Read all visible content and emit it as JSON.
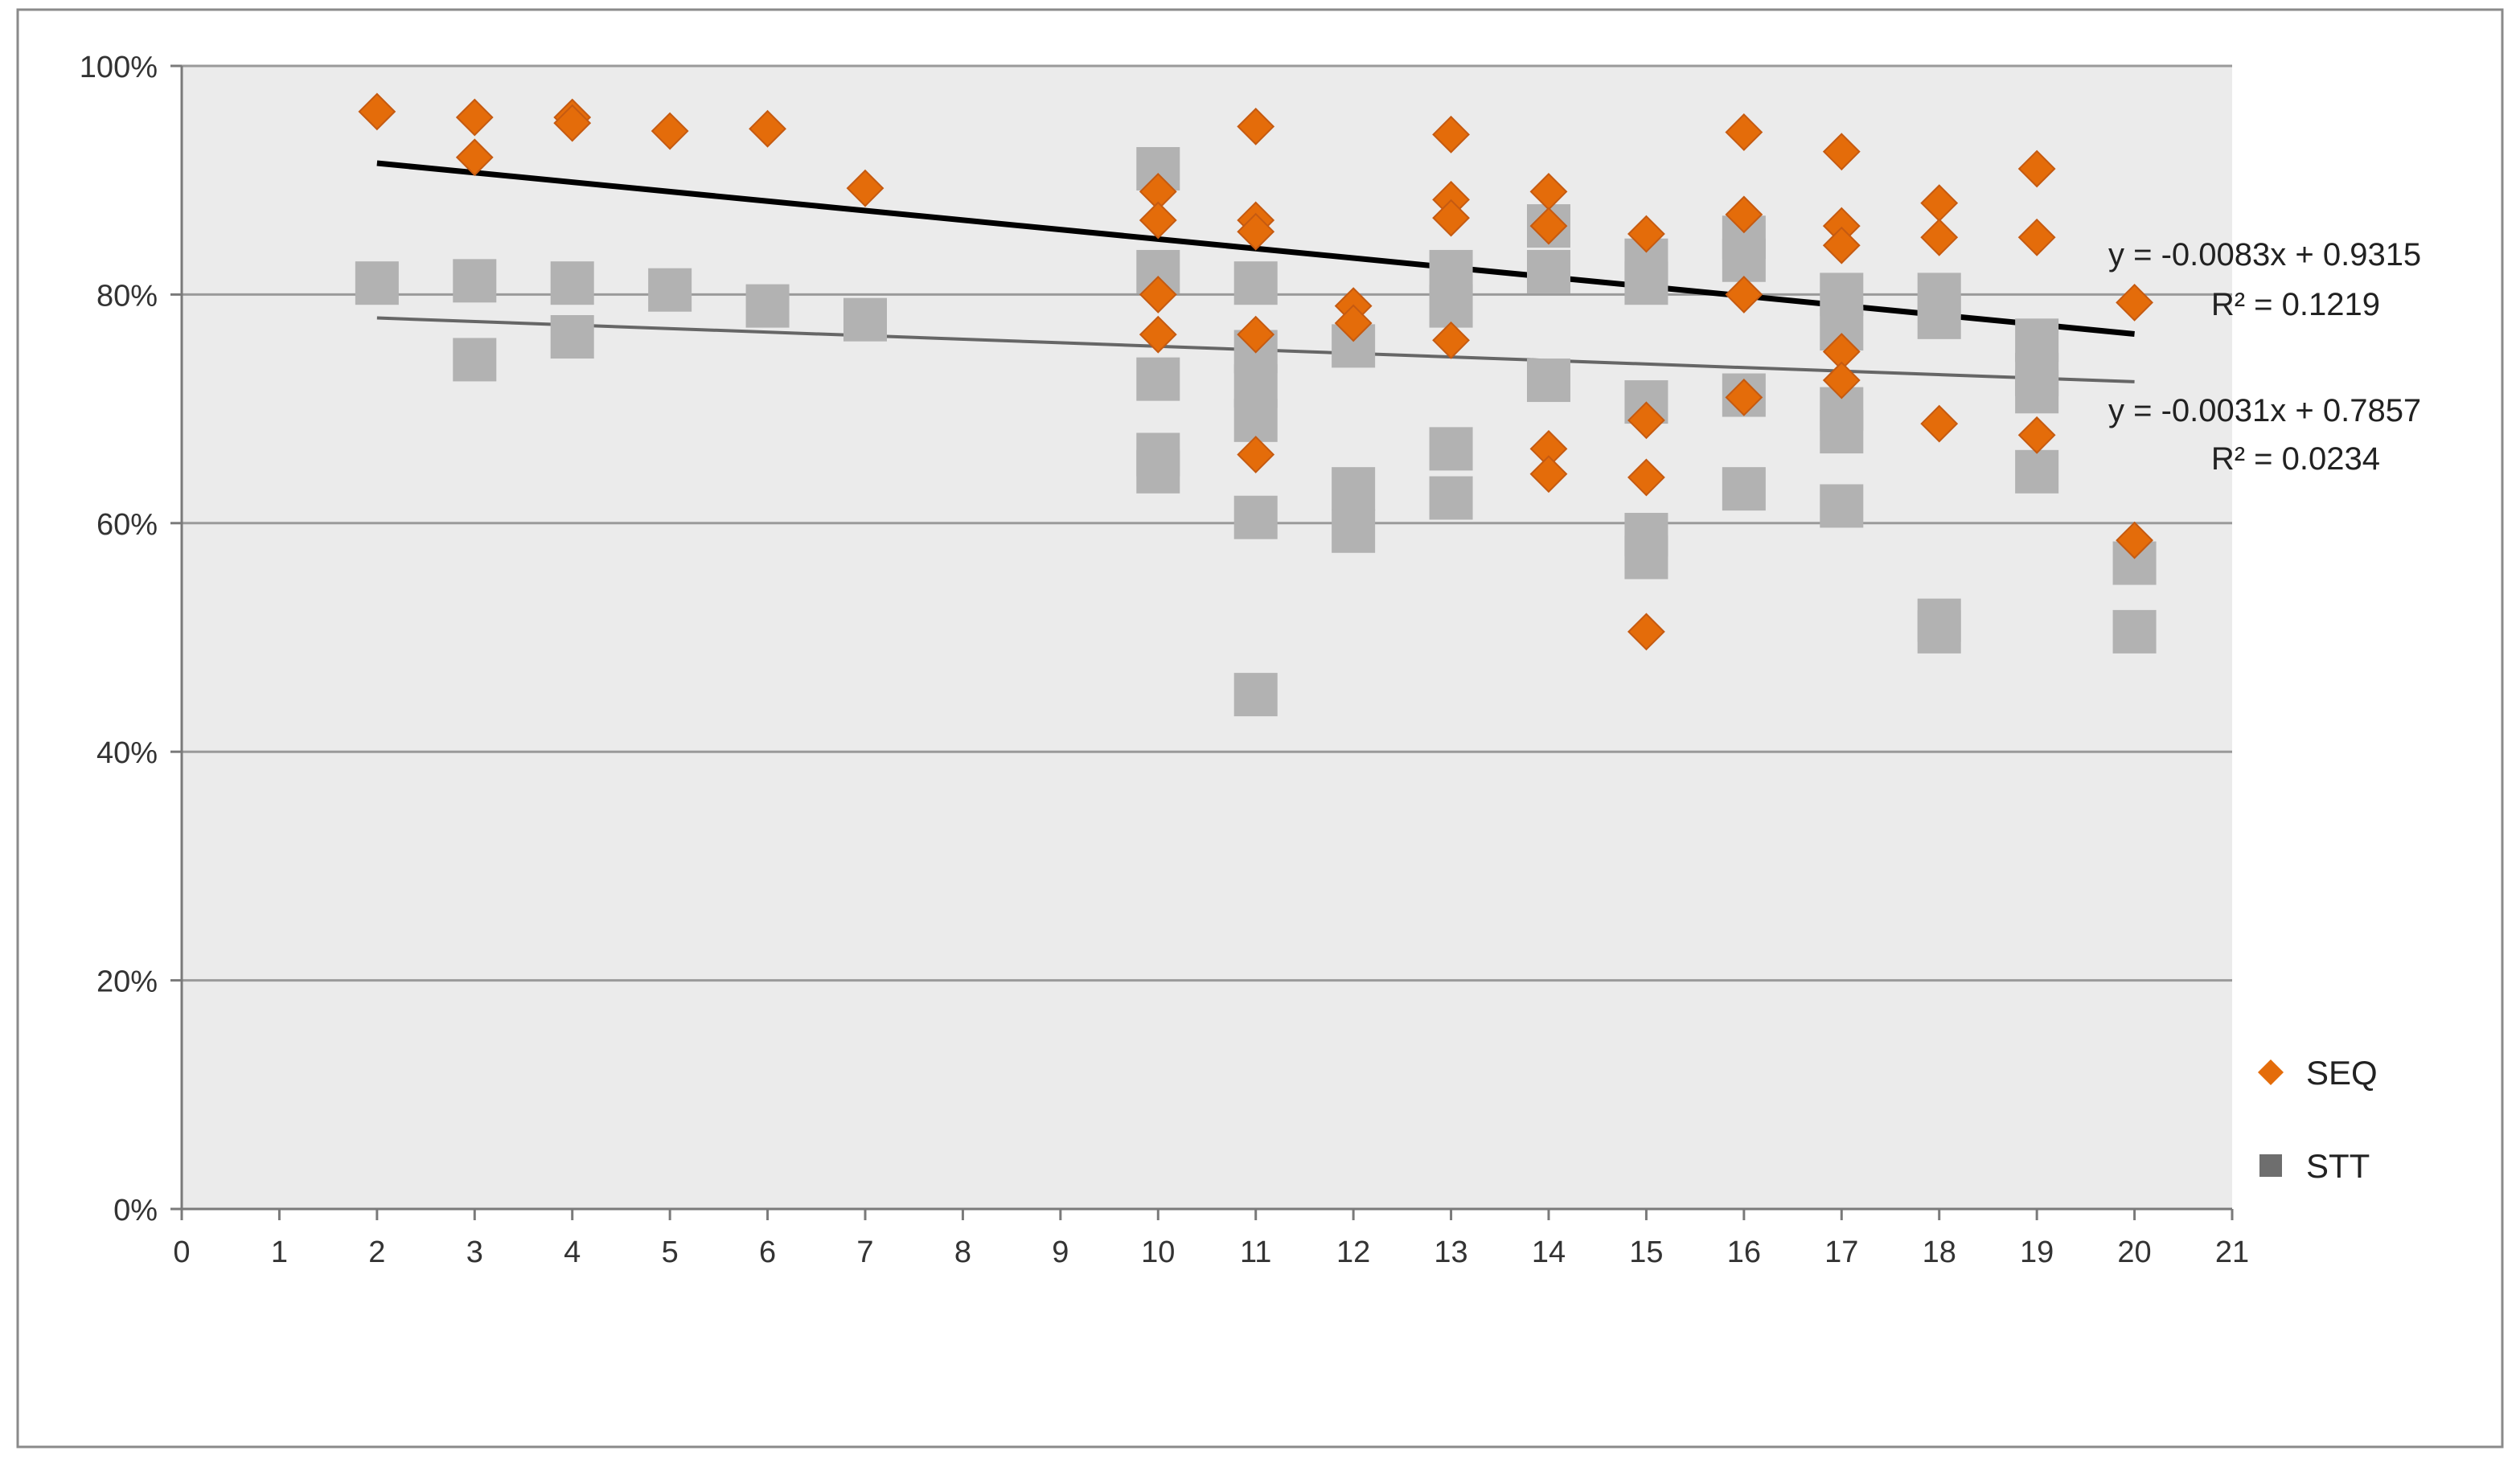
{
  "chart_data": {
    "type": "scatter",
    "title": "",
    "xlabel": "",
    "ylabel": "",
    "xlim": [
      0,
      21
    ],
    "ylim": [
      0,
      1
    ],
    "x_ticks": [
      "0",
      "1",
      "2",
      "3",
      "4",
      "5",
      "6",
      "7",
      "8",
      "9",
      "10",
      "11",
      "12",
      "13",
      "14",
      "15",
      "16",
      "17",
      "18",
      "19",
      "20",
      "21"
    ],
    "y_ticks": [
      "0%",
      "20%",
      "40%",
      "60%",
      "80%",
      "100%"
    ],
    "grid": "horizontal",
    "legend_position": "right",
    "series": [
      {
        "name": "SEQ",
        "marker": "diamond",
        "color": "#E46C0A",
        "points": [
          [
            2,
            0.96
          ],
          [
            3,
            0.955
          ],
          [
            3,
            0.92
          ],
          [
            4,
            0.955
          ],
          [
            4,
            0.95
          ],
          [
            5,
            0.943
          ],
          [
            6,
            0.945
          ],
          [
            7,
            0.893
          ],
          [
            10,
            0.89
          ],
          [
            10,
            0.865
          ],
          [
            10,
            0.8
          ],
          [
            10,
            0.765
          ],
          [
            11,
            0.947
          ],
          [
            11,
            0.865
          ],
          [
            11,
            0.855
          ],
          [
            11,
            0.765
          ],
          [
            11,
            0.66
          ],
          [
            12,
            0.79
          ],
          [
            12,
            0.775
          ],
          [
            13,
            0.94
          ],
          [
            13,
            0.883
          ],
          [
            13,
            0.867
          ],
          [
            13,
            0.76
          ],
          [
            14,
            0.89
          ],
          [
            14,
            0.86
          ],
          [
            14,
            0.665
          ],
          [
            14,
            0.643
          ],
          [
            15,
            0.853
          ],
          [
            15,
            0.69
          ],
          [
            15,
            0.64
          ],
          [
            15,
            0.505
          ],
          [
            16,
            0.942
          ],
          [
            16,
            0.87
          ],
          [
            16,
            0.8
          ],
          [
            16,
            0.71
          ],
          [
            17,
            0.925
          ],
          [
            17,
            0.86
          ],
          [
            17,
            0.843
          ],
          [
            17,
            0.75
          ],
          [
            17,
            0.725
          ],
          [
            18,
            0.88
          ],
          [
            18,
            0.85
          ],
          [
            18,
            0.687
          ],
          [
            19,
            0.91
          ],
          [
            19,
            0.85
          ],
          [
            19,
            0.677
          ],
          [
            20,
            0.793
          ],
          [
            20,
            0.585
          ]
        ]
      },
      {
        "name": "STT",
        "marker": "square",
        "color": "#B2B2B2",
        "points": [
          [
            2,
            0.81
          ],
          [
            3,
            0.812
          ],
          [
            3,
            0.743
          ],
          [
            4,
            0.81
          ],
          [
            4,
            0.763
          ],
          [
            5,
            0.804
          ],
          [
            6,
            0.79
          ],
          [
            7,
            0.778
          ],
          [
            10,
            0.91
          ],
          [
            10,
            0.82
          ],
          [
            10,
            0.726
          ],
          [
            10,
            0.66
          ],
          [
            10,
            0.645
          ],
          [
            11,
            0.81
          ],
          [
            11,
            0.75
          ],
          [
            11,
            0.72
          ],
          [
            11,
            0.69
          ],
          [
            11,
            0.605
          ],
          [
            11,
            0.45
          ],
          [
            12,
            0.755
          ],
          [
            12,
            0.63
          ],
          [
            12,
            0.593
          ],
          [
            13,
            0.82
          ],
          [
            13,
            0.79
          ],
          [
            13,
            0.665
          ],
          [
            13,
            0.622
          ],
          [
            14,
            0.86
          ],
          [
            14,
            0.82
          ],
          [
            14,
            0.725
          ],
          [
            15,
            0.83
          ],
          [
            15,
            0.81
          ],
          [
            15,
            0.706
          ],
          [
            15,
            0.59
          ],
          [
            15,
            0.57
          ],
          [
            16,
            0.85
          ],
          [
            16,
            0.83
          ],
          [
            16,
            0.712
          ],
          [
            16,
            0.63
          ],
          [
            17,
            0.8
          ],
          [
            17,
            0.77
          ],
          [
            17,
            0.7
          ],
          [
            17,
            0.68
          ],
          [
            17,
            0.615
          ],
          [
            18,
            0.8
          ],
          [
            18,
            0.78
          ],
          [
            18,
            0.515
          ],
          [
            18,
            0.505
          ],
          [
            19,
            0.76
          ],
          [
            19,
            0.73
          ],
          [
            19,
            0.715
          ],
          [
            19,
            0.645
          ],
          [
            20,
            0.565
          ],
          [
            20,
            0.505
          ]
        ]
      }
    ],
    "trendlines": [
      {
        "series": "SEQ",
        "slope": -0.0083,
        "intercept": 0.9315,
        "x_range": [
          2,
          20
        ],
        "color": "#000000",
        "equation": "y = -0.0083x + 0.9315",
        "r2": "R² = 0.1219"
      },
      {
        "series": "STT",
        "slope": -0.0031,
        "intercept": 0.7857,
        "x_range": [
          2,
          20
        ],
        "color": "#666666",
        "equation": "y = -0.0031x + 0.7857",
        "r2": "R² = 0.0234"
      }
    ],
    "legend": [
      {
        "label": "SEQ",
        "marker": "diamond",
        "color": "#E46C0A"
      },
      {
        "label": "STT",
        "marker": "square",
        "color": "#6E6E6E"
      }
    ]
  }
}
